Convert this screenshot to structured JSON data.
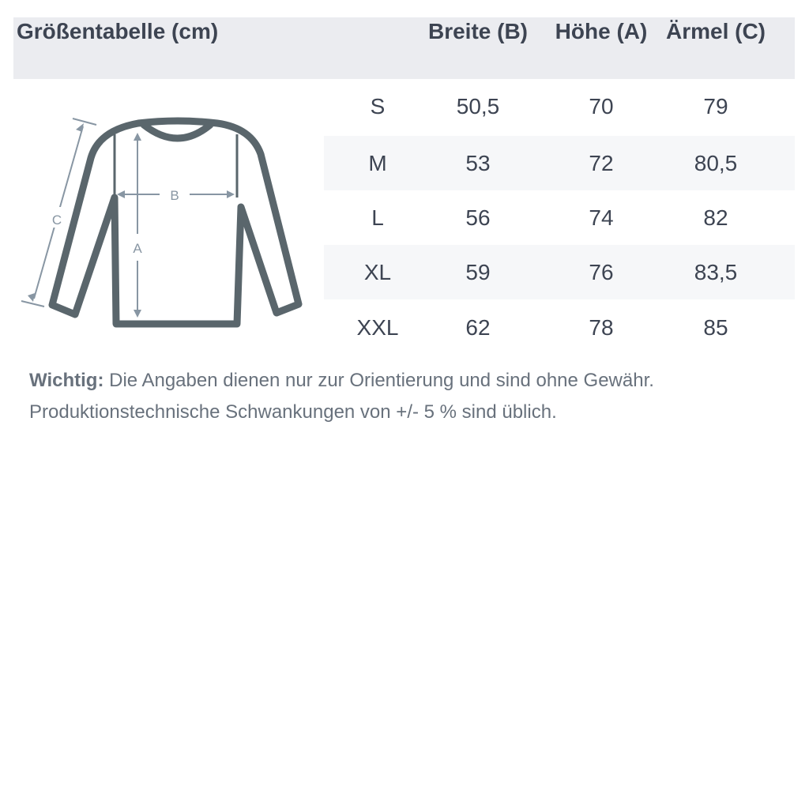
{
  "title": "Größentabelle (cm)",
  "columns": [
    "Breite (B)",
    "Höhe (A)",
    "Ärmel (C)"
  ],
  "rows": [
    {
      "size": "S",
      "values": [
        "50,5",
        "70",
        "79"
      ]
    },
    {
      "size": "M",
      "values": [
        "53",
        "72",
        "80,5"
      ]
    },
    {
      "size": "L",
      "values": [
        "56",
        "74",
        "82"
      ]
    },
    {
      "size": "XL",
      "values": [
        "59",
        "76",
        "83,5"
      ]
    },
    {
      "size": "XXL",
      "values": [
        "62",
        "78",
        "85"
      ]
    }
  ],
  "diagram": {
    "labels": {
      "a": "A",
      "b": "B",
      "c": "C"
    },
    "icon": "longsleeve-shirt-icon"
  },
  "note": {
    "label": "Wichtig:",
    "line1": "Die Angaben dienen nur zur Orientierung und sind ohne Gewähr.",
    "line2": "Produktionstechnische Schwankungen von +/- 5 % sind üblich."
  },
  "colors": {
    "header_bg": "#ebecf0",
    "stripe": "#f6f7f9",
    "outline": "#5a666c",
    "measure": "#8896a3",
    "text": "#3d4452"
  }
}
